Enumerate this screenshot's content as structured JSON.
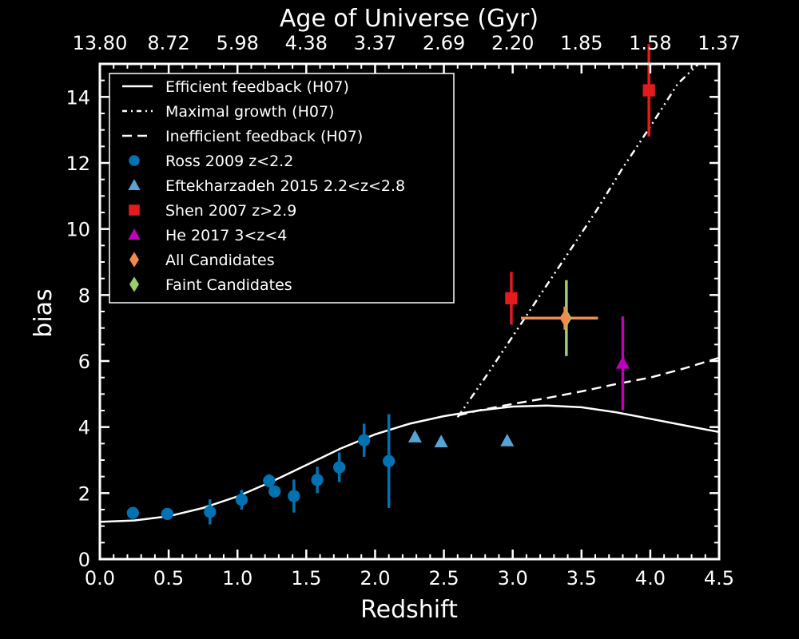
{
  "chart_data": {
    "type": "scatter",
    "xlabel": "Redshift",
    "ylabel": "bias",
    "top_axis_label": "Age of Universe (Gyr)",
    "xlim": [
      0,
      4.5
    ],
    "ylim": [
      0,
      15
    ],
    "x_ticks": [
      "0.0",
      "0.5",
      "1.0",
      "1.5",
      "2.0",
      "2.5",
      "3.0",
      "3.5",
      "4.0",
      "4.5"
    ],
    "y_ticks": [
      "0",
      "2",
      "4",
      "6",
      "8",
      "10",
      "12",
      "14"
    ],
    "top_ticks": [
      {
        "z": 0.0,
        "label": "13.80"
      },
      {
        "z": 0.5,
        "label": "8.72"
      },
      {
        "z": 1.0,
        "label": "5.98"
      },
      {
        "z": 1.5,
        "label": "4.38"
      },
      {
        "z": 2.0,
        "label": "3.37"
      },
      {
        "z": 2.5,
        "label": "2.69"
      },
      {
        "z": 3.0,
        "label": "2.20"
      },
      {
        "z": 3.5,
        "label": "1.85"
      },
      {
        "z": 4.0,
        "label": "1.58"
      },
      {
        "z": 4.5,
        "label": "1.37"
      }
    ],
    "legend_position": "top-left",
    "lines": [
      {
        "name": "Efficient feedback (H07)",
        "style": "solid",
        "color": "#ffffff",
        "points": [
          [
            0,
            1.13
          ],
          [
            0.25,
            1.17
          ],
          [
            0.5,
            1.3
          ],
          [
            0.75,
            1.55
          ],
          [
            1.0,
            1.9
          ],
          [
            1.25,
            2.35
          ],
          [
            1.5,
            2.85
          ],
          [
            1.75,
            3.35
          ],
          [
            2.0,
            3.78
          ],
          [
            2.25,
            4.1
          ],
          [
            2.5,
            4.33
          ],
          [
            2.75,
            4.5
          ],
          [
            3.0,
            4.62
          ],
          [
            3.25,
            4.65
          ],
          [
            3.5,
            4.6
          ],
          [
            3.75,
            4.45
          ],
          [
            4.0,
            4.25
          ],
          [
            4.25,
            4.05
          ],
          [
            4.5,
            3.85
          ]
        ]
      },
      {
        "name": "Maximal growth (H07)",
        "style": "dash-dot-dot",
        "color": "#ffffff",
        "points": [
          [
            2.6,
            4.3
          ],
          [
            2.8,
            5.5
          ],
          [
            3.0,
            6.75
          ],
          [
            3.2,
            8.0
          ],
          [
            3.4,
            9.25
          ],
          [
            3.6,
            10.5
          ],
          [
            3.8,
            11.85
          ],
          [
            4.0,
            13.1
          ],
          [
            4.2,
            14.4
          ],
          [
            4.35,
            15.0
          ]
        ]
      },
      {
        "name": "Inefficient feedback (H07)",
        "style": "dashed",
        "color": "#ffffff",
        "points": [
          [
            2.6,
            4.35
          ],
          [
            2.75,
            4.5
          ],
          [
            3.0,
            4.7
          ],
          [
            3.25,
            4.88
          ],
          [
            3.5,
            5.08
          ],
          [
            3.75,
            5.3
          ],
          [
            4.0,
            5.5
          ],
          [
            4.25,
            5.78
          ],
          [
            4.5,
            6.1
          ]
        ]
      }
    ],
    "series": [
      {
        "name": "Ross 2009 z<2.2",
        "marker": "circle",
        "color": "#0072b2",
        "points": [
          {
            "x": 0.24,
            "y": 1.4,
            "yerr": 0.08
          },
          {
            "x": 0.49,
            "y": 1.37,
            "yerr": 0.06
          },
          {
            "x": 0.8,
            "y": 1.43,
            "yerr": 0.38
          },
          {
            "x": 1.03,
            "y": 1.8,
            "yerr": 0.3
          },
          {
            "x": 1.23,
            "y": 2.37,
            "yerr": 0.2
          },
          {
            "x": 1.27,
            "y": 2.05,
            "yerr": 0.15
          },
          {
            "x": 1.41,
            "y": 1.91,
            "yerr": 0.5
          },
          {
            "x": 1.58,
            "y": 2.4,
            "yerr": 0.4
          },
          {
            "x": 1.74,
            "y": 2.78,
            "yerr": 0.45
          },
          {
            "x": 1.92,
            "y": 3.6,
            "yerr": 0.5
          },
          {
            "x": 2.1,
            "y": 2.97,
            "yerr": 1.42
          }
        ]
      },
      {
        "name": "Eftekharzadeh 2015 2.2<z<2.8",
        "marker": "triangle",
        "color": "#56a3d4",
        "points": [
          {
            "x": 2.29,
            "y": 3.7,
            "yerr": 0.1
          },
          {
            "x": 2.48,
            "y": 3.55,
            "yerr": 0.15
          },
          {
            "x": 2.96,
            "y": 3.58,
            "yerr": 0.1
          }
        ]
      },
      {
        "name": "Shen 2007 z>2.9",
        "marker": "square",
        "color": "#e41a1c",
        "points": [
          {
            "x": 2.99,
            "y": 7.9,
            "yerr": 0.8
          },
          {
            "x": 3.99,
            "y": 14.2,
            "yerr": 1.4
          }
        ]
      },
      {
        "name": "He 2017 3<z<4",
        "marker": "triangle",
        "color": "#c000c0",
        "points": [
          {
            "x": 3.8,
            "y": 5.93,
            "yerr": 1.42
          }
        ]
      },
      {
        "name": "All Candidates",
        "marker": "diamond",
        "color": "#f58a4a",
        "points": [
          {
            "x": 3.38,
            "y": 7.3,
            "yerr": 0.35,
            "xerr_lo": 0.32,
            "xerr_hi": 0.24
          }
        ]
      },
      {
        "name": "Faint Candidates",
        "marker": "diamond",
        "color": "#9ccf6a",
        "points": [
          {
            "x": 3.39,
            "y": 7.3,
            "yerr": 1.15
          }
        ]
      }
    ]
  }
}
